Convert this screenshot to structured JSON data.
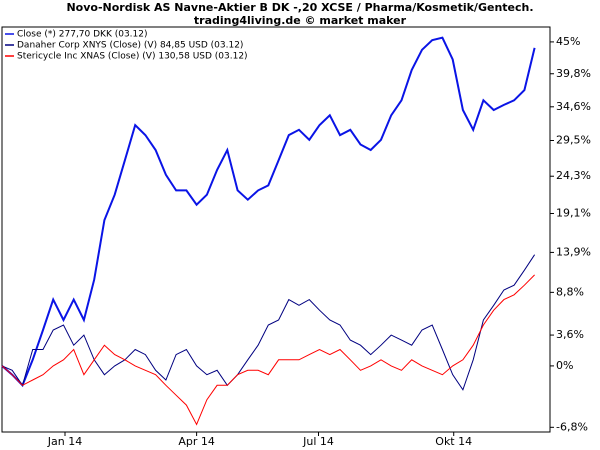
{
  "chart_data": {
    "type": "line",
    "title": "Novo-Nordisk AS Navne-Aktier B DK -,20 XCSE / Pharma/Kosmetik/Gentech.",
    "subtitle": "trading4living.de © market maker",
    "x": [
      0,
      1,
      2,
      3,
      4,
      5,
      6,
      7,
      8,
      9,
      10,
      11,
      12,
      13,
      14,
      15,
      16,
      17,
      18,
      19,
      20,
      21,
      22,
      23,
      24,
      25,
      26,
      27,
      28,
      29,
      30,
      31,
      32,
      33,
      34,
      35,
      36,
      37,
      38,
      39,
      40,
      41,
      42,
      43,
      44,
      45,
      46,
      47,
      48,
      49,
      50,
      51,
      52
    ],
    "xlim": [
      0,
      53.5
    ],
    "xticks": [
      {
        "value": 6.15,
        "label": "Jan 14"
      },
      {
        "value": 19.0,
        "label": "Apr 14"
      },
      {
        "value": 30.9,
        "label": "Jul 14"
      },
      {
        "value": 44.1,
        "label": "Okt 14"
      }
    ],
    "ylim": [
      -7.3,
      47.5
    ],
    "log_scale": true,
    "yticks": [
      {
        "value": 45,
        "label": "45%"
      },
      {
        "value": 39.8,
        "label": "39,8%"
      },
      {
        "value": 34.6,
        "label": "34,6%"
      },
      {
        "value": 29.5,
        "label": "29,5%"
      },
      {
        "value": 24.3,
        "label": "24,3%"
      },
      {
        "value": 19.1,
        "label": "19,1%"
      },
      {
        "value": 13.9,
        "label": "13,9%"
      },
      {
        "value": 8.8,
        "label": "8,8%"
      },
      {
        "value": 3.6,
        "label": "3,6%"
      },
      {
        "value": 0,
        "label": "0%"
      },
      {
        "value": -6.8,
        "label": "-6,8%"
      }
    ],
    "series": [
      {
        "name": "Close (*) 277,70 DKK (03.12)",
        "color": "#0a14e6",
        "values": [
          0,
          -1,
          -2.2,
          0.7,
          4.2,
          7.9,
          5.4,
          7.9,
          5.4,
          10.4,
          18.2,
          21.7,
          26.6,
          31.8,
          30.3,
          28.1,
          24.5,
          22.3,
          22.3,
          20.3,
          21.7,
          25.2,
          28.1,
          22.3,
          21.0,
          22.3,
          23.0,
          26.6,
          30.3,
          31.1,
          29.6,
          31.8,
          33.3,
          30.3,
          31.1,
          28.9,
          28.1,
          29.6,
          33.3,
          35.6,
          40.4,
          43.7,
          45.3,
          45.7,
          42.1,
          34.1,
          31.1,
          35.6,
          34.1,
          34.9,
          35.6,
          37.2,
          44.0
        ]
      },
      {
        "name": "Danaher Corp XNYS (Close) (V) 84,85 USD (03.12)",
        "color": "#000080",
        "values": [
          0,
          -0.5,
          -2.2,
          1.9,
          1.9,
          4.2,
          4.8,
          2.4,
          3.6,
          0.7,
          -1,
          0,
          0.7,
          1.9,
          1.3,
          -0.5,
          -1.6,
          1.3,
          1.9,
          0,
          -1,
          -0.5,
          -2.2,
          -1,
          0.7,
          2.4,
          4.8,
          5.4,
          7.9,
          7.2,
          7.9,
          6.6,
          5.4,
          4.8,
          3.0,
          2.4,
          1.3,
          2.4,
          3.6,
          3.0,
          2.4,
          4.2,
          4.8,
          1.9,
          -1,
          -2.7,
          0.7,
          5.4,
          7.2,
          9.1,
          9.7,
          11.6,
          13.6
        ]
      },
      {
        "name": "Stericycle Inc XNAS (Close) (V) 130,58 USD (03.12)",
        "color": "#ff0000",
        "values": [
          0,
          -1,
          -2.2,
          -1.6,
          -1,
          0,
          0.7,
          1.9,
          -1,
          0.7,
          2.4,
          1.3,
          0.7,
          0,
          -0.5,
          -1,
          -2.2,
          -3.3,
          -4.4,
          -6.5,
          -3.8,
          -2.2,
          -2.2,
          -1,
          -0.5,
          -0.5,
          -1,
          0.7,
          0.7,
          0.7,
          1.3,
          1.9,
          1.3,
          1.9,
          0.7,
          -0.5,
          0,
          0.7,
          0,
          -0.5,
          0.7,
          0,
          -0.5,
          -1,
          0,
          0.7,
          2.4,
          4.8,
          6.6,
          7.9,
          8.5,
          9.7,
          11.0
        ]
      }
    ]
  }
}
